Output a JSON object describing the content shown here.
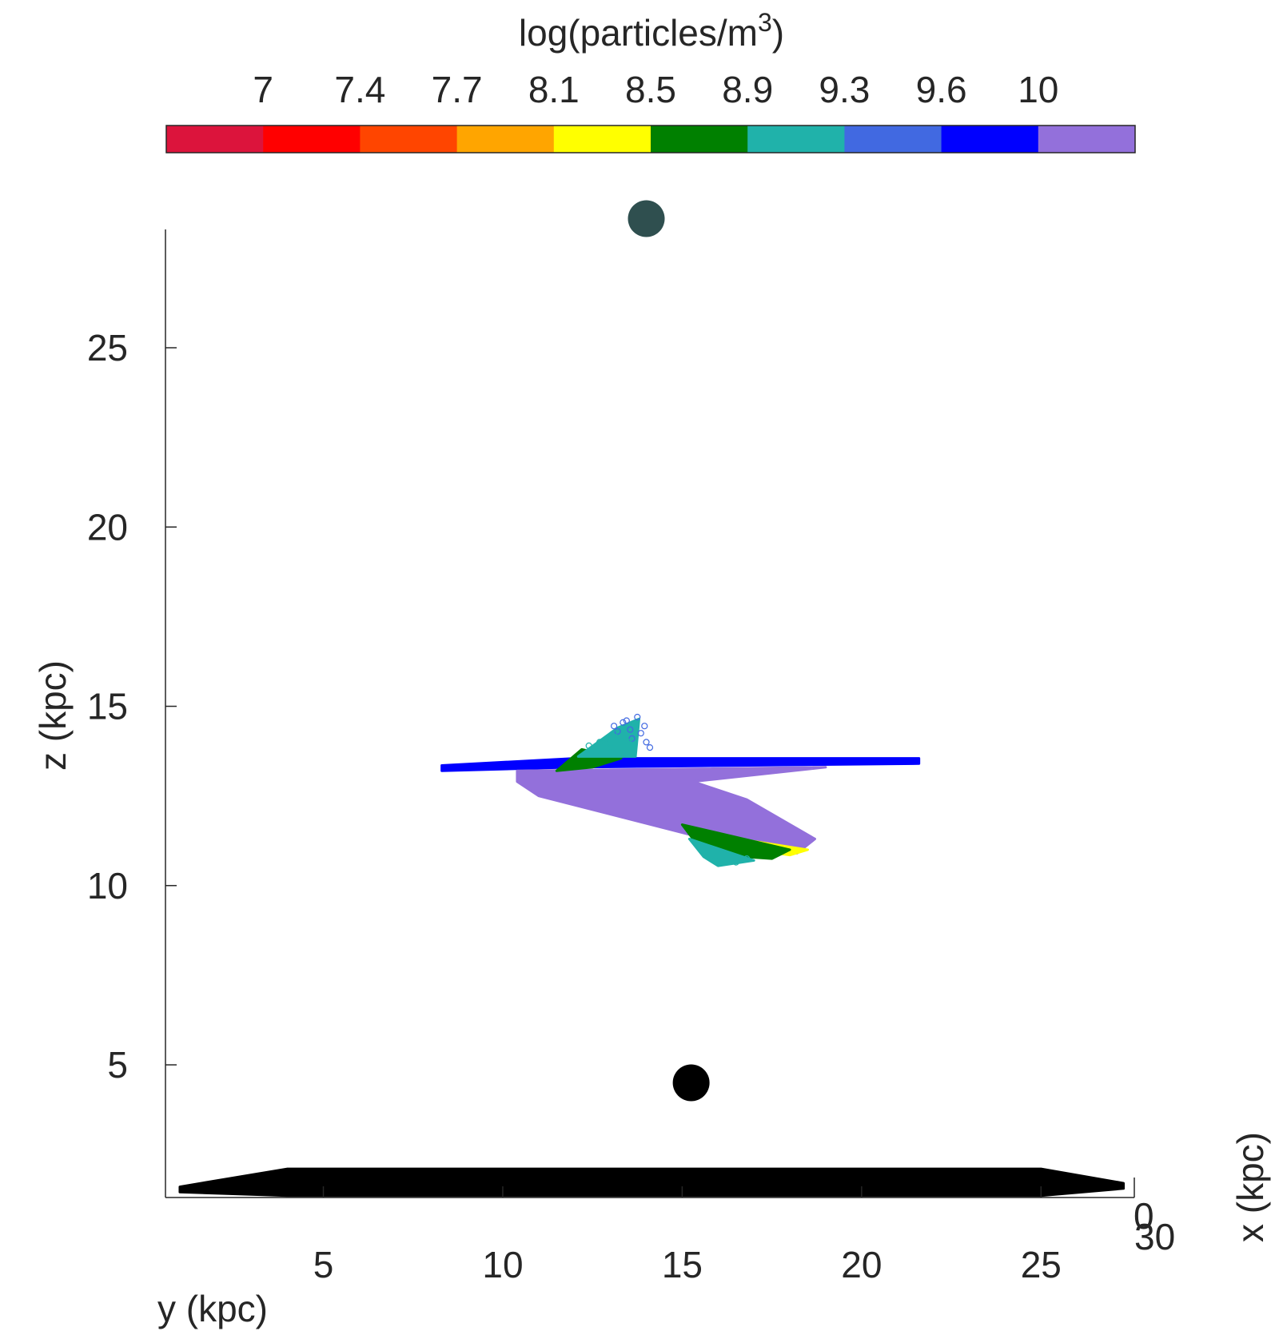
{
  "chart_data": {
    "type": "scatter",
    "colorbar": {
      "title": "log(particles/m",
      "title_superscript": "3",
      "title_close": ")",
      "tick_labels": [
        "7",
        "7.4",
        "7.7",
        "8.1",
        "8.5",
        "8.9",
        "9.3",
        "9.6",
        "10"
      ],
      "bins": [
        "#DC143C",
        "#FF0000",
        "#FF4500",
        "#FFA500",
        "#FFFF00",
        "#008000",
        "#20B2AA",
        "#4169E1",
        "#0000FF",
        "#9370DB"
      ]
    },
    "xlabel": "y (kpc)",
    "ylabel": "z (kpc)",
    "depth_label": "x (kpc)",
    "xticks": [
      5,
      10,
      15,
      20,
      25
    ],
    "yticks": [
      5,
      10,
      15,
      20,
      25
    ],
    "depth_ticks": [
      "0",
      "30"
    ],
    "xlim": [
      0.6,
      27.6
    ],
    "ylim": [
      1.3,
      28.3
    ],
    "series": [
      {
        "role": "galaxy-disk",
        "color": "#000000",
        "outline": [
          [
            1,
            1.6
          ],
          [
            4,
            2.1
          ],
          [
            25,
            2.1
          ],
          [
            27.3,
            1.7
          ],
          [
            27.3,
            1.55
          ],
          [
            25,
            1.35
          ],
          [
            4,
            1.35
          ],
          [
            1,
            1.45
          ]
        ]
      },
      {
        "role": "sphere-upper",
        "color": "#2F4F4F",
        "x": 14.0,
        "y": 28.6
      },
      {
        "role": "sphere-lower",
        "color": "#000000",
        "x": 15.25,
        "y": 4.5
      },
      {
        "role": "blue-sheet",
        "color": "#0000FF",
        "outline": [
          [
            8.3,
            13.35
          ],
          [
            12,
            13.55
          ],
          [
            21.6,
            13.55
          ],
          [
            21.6,
            13.4
          ],
          [
            12,
            13.3
          ],
          [
            8.3,
            13.2
          ]
        ]
      },
      {
        "role": "purple-sheet",
        "color": "#9370DB",
        "outline": [
          [
            10.4,
            13.2
          ],
          [
            19,
            13.3
          ],
          [
            15.3,
            12.9
          ],
          [
            16.8,
            12.4
          ],
          [
            18.7,
            11.3
          ],
          [
            18.2,
            10.9
          ],
          [
            15.3,
            11.4
          ],
          [
            11.0,
            12.5
          ],
          [
            10.4,
            12.9
          ]
        ]
      },
      {
        "role": "yellow-edge",
        "color": "#FFFF00",
        "outline": [
          [
            15.3,
            11.5
          ],
          [
            18.5,
            11.0
          ],
          [
            18.0,
            10.85
          ],
          [
            15.6,
            11.2
          ]
        ]
      },
      {
        "role": "green-lower",
        "color": "#008000",
        "outline": [
          [
            15.0,
            11.7
          ],
          [
            18.0,
            11.0
          ],
          [
            17.5,
            10.75
          ],
          [
            16.0,
            10.85
          ],
          [
            15.3,
            11.3
          ]
        ]
      },
      {
        "role": "teal-lower",
        "color": "#20B2AA",
        "outline": [
          [
            15.2,
            11.3
          ],
          [
            17.0,
            10.7
          ],
          [
            16.0,
            10.55
          ],
          [
            15.6,
            10.8
          ]
        ]
      },
      {
        "role": "green-upper",
        "color": "#008000",
        "outline": [
          [
            11.5,
            13.2
          ],
          [
            12.2,
            13.8
          ],
          [
            13.3,
            13.55
          ],
          [
            12.5,
            13.3
          ]
        ]
      },
      {
        "role": "teal-upper",
        "color": "#20B2AA",
        "outline": [
          [
            12.1,
            13.6
          ],
          [
            13.2,
            14.4
          ],
          [
            13.8,
            14.65
          ],
          [
            13.7,
            13.6
          ]
        ]
      },
      {
        "role": "blue-scatter",
        "color": "#4169E1",
        "x": [
          13.1,
          13.35,
          13.55,
          13.75,
          13.85,
          13.6,
          13.45,
          14.0,
          14.1,
          13.2,
          13.95
        ],
        "y": [
          14.45,
          14.55,
          14.35,
          14.7,
          14.25,
          14.1,
          14.6,
          14.0,
          13.85,
          14.3,
          14.45
        ]
      },
      {
        "role": "teal-scatter",
        "color": "#20B2AA",
        "x": [
          12.4,
          12.7,
          12.9,
          13.1,
          13.3,
          13.5,
          12.6,
          13.0,
          16.2,
          16.5,
          16.8,
          15.9
        ],
        "y": [
          13.9,
          14.0,
          14.1,
          14.25,
          14.15,
          14.0,
          13.75,
          13.85,
          10.7,
          10.65,
          10.75,
          10.8
        ]
      }
    ]
  }
}
